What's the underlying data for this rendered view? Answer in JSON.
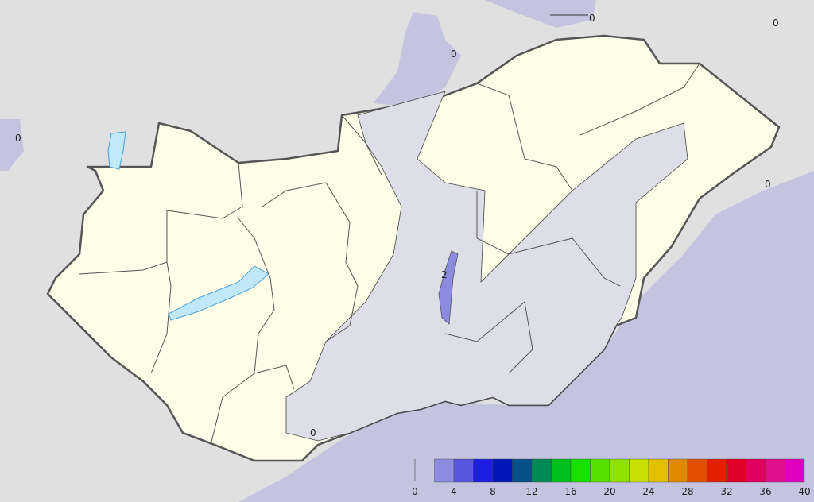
{
  "map": {
    "contour_labels": [
      {
        "text": "0",
        "near": "north"
      },
      {
        "text": "0",
        "near": "north-east"
      },
      {
        "text": "0",
        "near": "north-west"
      },
      {
        "text": "0",
        "near": "west"
      },
      {
        "text": "0",
        "near": "east"
      },
      {
        "text": "0",
        "near": "south"
      },
      {
        "text": "2",
        "near": "center"
      }
    ],
    "colors": {
      "outside": "#e0e0e0",
      "land_low": "#fefee8",
      "zero_band": "#dedee9",
      "field_band": "#c4c4e0",
      "lake": "#c0e8f8",
      "border": "#555555"
    }
  },
  "legend": {
    "ticks": [
      "0",
      "4",
      "8",
      "12",
      "16",
      "20",
      "24",
      "28",
      "32",
      "36",
      "40"
    ],
    "bins": [
      2,
      4,
      6,
      8,
      10,
      12,
      14,
      16,
      18,
      20,
      22,
      24,
      26,
      28,
      30,
      32,
      34,
      36,
      38,
      40
    ],
    "colors": [
      "#8b8be0",
      "#5a55e0",
      "#1e1ee0",
      "#0018b8",
      "#055088",
      "#008a58",
      "#00c020",
      "#18e000",
      "#58e000",
      "#90e000",
      "#c8e000",
      "#e0c000",
      "#e08800",
      "#e05000",
      "#e02000",
      "#e00028",
      "#e00060",
      "#e0108c",
      "#e000c0"
    ]
  }
}
